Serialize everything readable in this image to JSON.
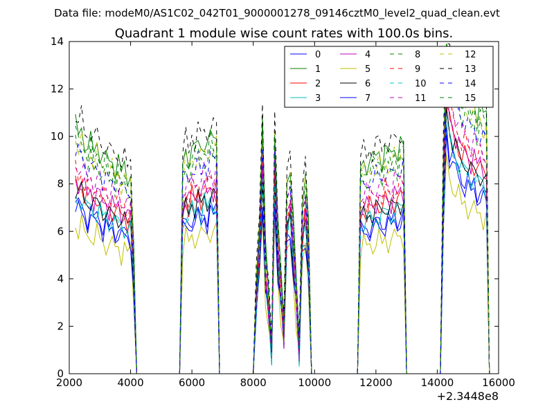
{
  "figure": {
    "suptitle": "Data file: modeM0/AS1C02_042T01_9000001278_09146cztM0_level2_quad_clean.evt",
    "title": "Quadrant 1 module wise count rates with 100.0s bins.",
    "x_offset_label": "+2.3448e8"
  },
  "chart_data": {
    "type": "line",
    "title": "Quadrant 1 module wise count rates with 100.0s bins.",
    "xlabel": "",
    "ylabel": "",
    "x_offset": "+2.3448e8",
    "xlim": [
      2000,
      16000
    ],
    "ylim": [
      0,
      14
    ],
    "xticks": [
      2000,
      4000,
      6000,
      8000,
      10000,
      12000,
      14000,
      16000
    ],
    "yticks": [
      0,
      2,
      4,
      6,
      8,
      10,
      12,
      14
    ],
    "grid": false,
    "legend": "top-right",
    "legend_columns": 4,
    "segments": [
      {
        "x": [
          2200,
          2300,
          2400,
          2500,
          2600,
          2700,
          2800,
          2900,
          3000,
          3100,
          3200,
          3300,
          3400,
          3500,
          3600,
          3700,
          3800,
          3900,
          4000,
          4100,
          4200
        ],
        "end": [
          0.0,
          0.0
        ]
      },
      {
        "x": [
          5600,
          5700,
          5800,
          5900,
          6000,
          6100,
          6200,
          6300,
          6400,
          6500,
          6600,
          6700,
          6800,
          6900
        ]
      },
      {
        "x": [
          7900,
          8000,
          8100,
          8200,
          8300,
          8400,
          8500,
          8600,
          8700,
          8800,
          8900,
          9000,
          9100,
          9200,
          9300,
          9400,
          9500,
          9600,
          9700,
          9800,
          9900,
          10000
        ]
      },
      {
        "x": [
          11400,
          11500,
          11600,
          11700,
          11800,
          11900,
          12000,
          12100,
          12200,
          12300,
          12400,
          12500,
          12600,
          12700,
          12800,
          12900,
          13000
        ]
      },
      {
        "x": [
          14000,
          14100,
          14200,
          14300,
          14400,
          14500,
          14600,
          14700,
          14800,
          14900,
          15000,
          15100,
          15200,
          15300,
          15400,
          15500,
          15600,
          15700
        ]
      }
    ],
    "base": [
      [
        8.4,
        8.1,
        8.3,
        7.9,
        7.7,
        7.9,
        7.5,
        7.8,
        7.6,
        7.3,
        7.4,
        7.1,
        7.3,
        7.0,
        7.2,
        6.8,
        7.0,
        6.7,
        6.9,
        4.3,
        0.0
      ],
      [
        0.0,
        7.1,
        7.6,
        7.3,
        7.8,
        7.5,
        7.9,
        7.6,
        8.0,
        7.7,
        8.1,
        7.9,
        8.1,
        0.0
      ],
      [
        0.0,
        0.0,
        3.2,
        5.3,
        8.8,
        4.2,
        2.8,
        0.9,
        8.6,
        5.2,
        3.4,
        1.6,
        6.6,
        7.2,
        5.3,
        3.2,
        0.9,
        6.0,
        7.0,
        5.1,
        0.0,
        0.0
      ],
      [
        0.0,
        7.0,
        7.2,
        7.1,
        7.3,
        7.2,
        7.4,
        7.5,
        7.3,
        7.6,
        7.5,
        7.4,
        7.7,
        7.6,
        7.8,
        7.7,
        0.0
      ],
      [
        0.0,
        0.0,
        7.5,
        12.2,
        11.0,
        10.6,
        10.2,
        10.0,
        9.5,
        9.6,
        9.4,
        9.1,
        9.3,
        8.9,
        9.1,
        8.8,
        8.7,
        0.0
      ]
    ],
    "series": [
      {
        "name": "0",
        "color": "#0000ff",
        "dash": "solid",
        "factor": 0.86
      },
      {
        "name": "1",
        "color": "#008000",
        "dash": "solid",
        "factor": 1.24
      },
      {
        "name": "2",
        "color": "#ff0000",
        "dash": "solid",
        "factor": 0.96
      },
      {
        "name": "3",
        "color": "#00bfbf",
        "dash": "solid",
        "factor": 0.9
      },
      {
        "name": "4",
        "color": "#bf00bf",
        "dash": "solid",
        "factor": 0.98
      },
      {
        "name": "5",
        "color": "#bfbf00",
        "dash": "solid",
        "factor": 0.75
      },
      {
        "name": "6",
        "color": "#000000",
        "dash": "solid",
        "factor": 0.93
      },
      {
        "name": "7",
        "color": "#0000ff",
        "dash": "solid",
        "factor": 0.83
      },
      {
        "name": "8",
        "color": "#008000",
        "dash": "dashed",
        "factor": 1.14
      },
      {
        "name": "9",
        "color": "#ff0000",
        "dash": "dashed",
        "factor": 1.02
      },
      {
        "name": "10",
        "color": "#00bfbf",
        "dash": "dashed",
        "factor": 0.88
      },
      {
        "name": "11",
        "color": "#bf00bf",
        "dash": "dashed",
        "factor": 1.06
      },
      {
        "name": "12",
        "color": "#bfbf00",
        "dash": "dashed",
        "factor": 1.18
      },
      {
        "name": "13",
        "color": "#000000",
        "dash": "dashed",
        "factor": 1.3
      },
      {
        "name": "14",
        "color": "#0000ff",
        "dash": "dashed",
        "factor": 1.12
      },
      {
        "name": "15",
        "color": "#008000",
        "dash": "dashed",
        "factor": 1.2
      }
    ]
  }
}
